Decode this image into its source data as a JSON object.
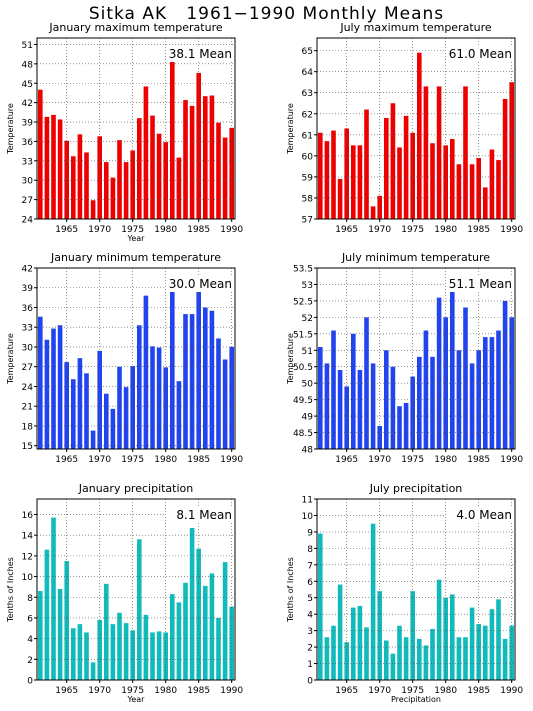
{
  "title": "Sitka AK   1961−1990 Monthly Means",
  "chart_data": [
    {
      "type": "bar",
      "title": "January maximum temperature",
      "annotation": "38.1 Mean",
      "ylabel": "Temperature",
      "xlabel": "Year",
      "color": "#ee0000",
      "x": [
        1961,
        1962,
        1963,
        1964,
        1965,
        1966,
        1967,
        1968,
        1969,
        1970,
        1971,
        1972,
        1973,
        1974,
        1975,
        1976,
        1977,
        1978,
        1979,
        1980,
        1981,
        1982,
        1983,
        1984,
        1985,
        1986,
        1987,
        1988,
        1989,
        1990
      ],
      "values": [
        44.0,
        39.8,
        40.1,
        39.4,
        36.1,
        33.7,
        37.1,
        34.3,
        26.9,
        36.8,
        32.8,
        30.4,
        36.2,
        32.8,
        34.6,
        39.6,
        44.5,
        40.0,
        37.2,
        35.9,
        49.0,
        33.5,
        42.4,
        41.5,
        46.6,
        43.0,
        43.1,
        38.9,
        36.6,
        38.1
      ],
      "ylim": [
        24,
        52
      ],
      "yticks": [
        24,
        27,
        30,
        33,
        36,
        39,
        42,
        45,
        48,
        51
      ],
      "xticks": [
        1965,
        1970,
        1975,
        1980,
        1985,
        1990
      ]
    },
    {
      "type": "bar",
      "title": "July maximum temperature",
      "annotation": "61.0 Mean",
      "ylabel": "Temperature",
      "xlabel": "",
      "color": "#ee0000",
      "x": [
        1961,
        1962,
        1963,
        1964,
        1965,
        1966,
        1967,
        1968,
        1969,
        1970,
        1971,
        1972,
        1973,
        1974,
        1975,
        1976,
        1977,
        1978,
        1979,
        1980,
        1981,
        1982,
        1983,
        1984,
        1985,
        1986,
        1987,
        1988,
        1989,
        1990
      ],
      "values": [
        61.1,
        60.7,
        61.2,
        58.9,
        61.3,
        60.5,
        60.5,
        62.2,
        57.6,
        58.1,
        61.8,
        62.5,
        60.4,
        61.9,
        61.1,
        64.9,
        63.3,
        60.6,
        63.3,
        60.5,
        60.8,
        59.6,
        63.3,
        59.6,
        59.9,
        58.5,
        60.3,
        59.8,
        62.7,
        63.5
      ],
      "ylim": [
        57,
        65.6
      ],
      "yticks": [
        57,
        58,
        59,
        60,
        61,
        62,
        63,
        64,
        65
      ],
      "xticks": [
        1965,
        1970,
        1975,
        1980,
        1985,
        1990
      ]
    },
    {
      "type": "bar",
      "title": "January minimum temperature",
      "annotation": "30.0 Mean",
      "ylabel": "Temperature",
      "xlabel": "",
      "color": "#2244ee",
      "x": [
        1961,
        1962,
        1963,
        1964,
        1965,
        1966,
        1967,
        1968,
        1969,
        1970,
        1971,
        1972,
        1973,
        1974,
        1975,
        1976,
        1977,
        1978,
        1979,
        1980,
        1981,
        1982,
        1983,
        1984,
        1985,
        1986,
        1987,
        1988,
        1989,
        1990
      ],
      "values": [
        34.6,
        31.1,
        32.8,
        33.3,
        27.7,
        25.1,
        28.3,
        26.0,
        17.3,
        29.4,
        22.9,
        20.6,
        27.0,
        23.9,
        27.1,
        33.3,
        37.8,
        30.1,
        29.9,
        26.9,
        39.0,
        24.8,
        35.0,
        35.0,
        39.5,
        36.0,
        35.5,
        31.3,
        28.1,
        30.0
      ],
      "ylim": [
        14.5,
        42
      ],
      "yticks": [
        15,
        18,
        21,
        24,
        27,
        30,
        33,
        36,
        39,
        42
      ],
      "xticks": [
        1965,
        1970,
        1975,
        1980,
        1985,
        1990
      ]
    },
    {
      "type": "bar",
      "title": "July minimum temperature",
      "annotation": "51.1 Mean",
      "ylabel": "Temperature",
      "xlabel": "",
      "color": "#2244ee",
      "x": [
        1961,
        1962,
        1963,
        1964,
        1965,
        1966,
        1967,
        1968,
        1969,
        1970,
        1971,
        1972,
        1973,
        1974,
        1975,
        1976,
        1977,
        1978,
        1979,
        1980,
        1981,
        1982,
        1983,
        1984,
        1985,
        1986,
        1987,
        1988,
        1989,
        1990
      ],
      "values": [
        51.1,
        50.6,
        51.6,
        50.4,
        49.9,
        51.5,
        50.4,
        52.0,
        50.6,
        48.7,
        51.0,
        50.5,
        49.3,
        49.4,
        50.2,
        50.8,
        51.6,
        50.8,
        52.6,
        52.0,
        52.9,
        51.0,
        52.3,
        50.6,
        51.0,
        51.4,
        51.4,
        51.6,
        52.5,
        52.0
      ],
      "ylim": [
        48,
        53.5
      ],
      "yticks": [
        48,
        48.5,
        49,
        49.5,
        50,
        50.5,
        51,
        51.5,
        52,
        52.5,
        53,
        53.5
      ],
      "xticks": [
        1965,
        1970,
        1975,
        1980,
        1985,
        1990
      ]
    },
    {
      "type": "bar",
      "title": "January precipitation",
      "annotation": "8.1 Mean",
      "ylabel": "Tenths of Inches",
      "xlabel": "Year",
      "color": "#11bbbb",
      "x": [
        1961,
        1962,
        1963,
        1964,
        1965,
        1966,
        1967,
        1968,
        1969,
        1970,
        1971,
        1972,
        1973,
        1974,
        1975,
        1976,
        1977,
        1978,
        1979,
        1980,
        1981,
        1982,
        1983,
        1984,
        1985,
        1986,
        1987,
        1988,
        1989,
        1990
      ],
      "values": [
        8.6,
        12.6,
        15.7,
        8.8,
        11.5,
        5.0,
        5.4,
        4.6,
        1.7,
        5.8,
        9.3,
        5.4,
        6.5,
        5.5,
        4.8,
        13.6,
        6.3,
        4.6,
        4.7,
        4.6,
        8.3,
        7.5,
        9.4,
        14.7,
        12.7,
        9.1,
        10.3,
        6.0,
        11.4,
        7.1
      ],
      "ylim": [
        0,
        17.5
      ],
      "yticks": [
        0,
        2,
        4,
        6,
        8,
        10,
        12,
        14,
        16
      ],
      "xticks": [
        1965,
        1970,
        1975,
        1980,
        1985,
        1990
      ]
    },
    {
      "type": "bar",
      "title": "July precipitation",
      "annotation": "4.0 Mean",
      "ylabel": "Tenths of Inches",
      "xlabel": "Precipitation",
      "color": "#11bbbb",
      "x": [
        1961,
        1962,
        1963,
        1964,
        1965,
        1966,
        1967,
        1968,
        1969,
        1970,
        1971,
        1972,
        1973,
        1974,
        1975,
        1976,
        1977,
        1978,
        1979,
        1980,
        1981,
        1982,
        1983,
        1984,
        1985,
        1986,
        1987,
        1988,
        1989,
        1990
      ],
      "values": [
        8.9,
        2.6,
        3.3,
        5.8,
        2.3,
        4.4,
        4.5,
        3.2,
        9.5,
        5.4,
        2.4,
        1.6,
        3.3,
        2.6,
        5.4,
        2.5,
        2.1,
        3.1,
        6.1,
        5.0,
        5.2,
        2.6,
        2.6,
        4.4,
        3.4,
        3.3,
        4.3,
        4.9,
        2.5,
        3.3
      ],
      "ylim": [
        0,
        11
      ],
      "yticks": [
        0,
        1,
        2,
        3,
        4,
        5,
        6,
        7,
        8,
        9,
        10,
        11
      ],
      "xticks": [
        1965,
        1970,
        1975,
        1980,
        1985,
        1990
      ]
    }
  ]
}
